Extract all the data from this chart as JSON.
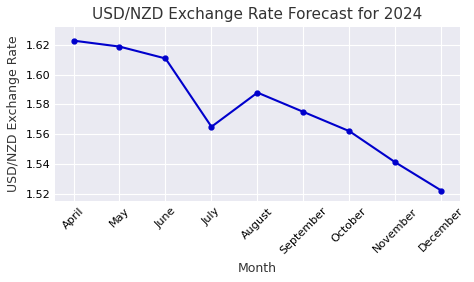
{
  "title": "USD/NZD Exchange Rate Forecast for 2024",
  "xlabel": "Month",
  "ylabel": "USD/NZD Exchange Rate",
  "months": [
    "April",
    "May",
    "June",
    "July",
    "August",
    "September",
    "October",
    "November",
    "December"
  ],
  "values": [
    1.623,
    1.619,
    1.611,
    1.565,
    1.588,
    1.575,
    1.562,
    1.541,
    1.522
  ],
  "line_color": "#0000cc",
  "marker": "o",
  "marker_size": 3.5,
  "line_width": 1.5,
  "ylim": [
    1.515,
    1.632
  ],
  "yticks": [
    1.52,
    1.54,
    1.56,
    1.58,
    1.6,
    1.62
  ],
  "fig_background_color": "#ffffff",
  "axes_background_color": "#eaeaf2",
  "grid_color": "#ffffff",
  "title_fontsize": 11,
  "label_fontsize": 9,
  "tick_fontsize": 8
}
